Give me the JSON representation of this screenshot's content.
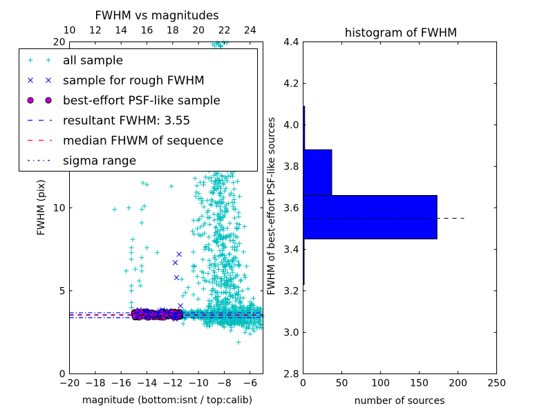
{
  "chart_data": [
    {
      "type": "scatter",
      "title": "FWHM vs magnitudes",
      "xlabel": "magnitude (bottom:isnt / top:calib)",
      "ylabel": "FWHM (pix)",
      "xlim": [
        -20,
        -5
      ],
      "ylim": [
        0,
        20
      ],
      "top_xlim": [
        10,
        25
      ],
      "xticks": [
        "−20",
        "−18",
        "−16",
        "−14",
        "−12",
        "−10",
        "−8",
        "−6"
      ],
      "xtick_values": [
        -20,
        -18,
        -16,
        -14,
        -12,
        -10,
        -8,
        -6
      ],
      "top_xticks": [
        "10",
        "12",
        "14",
        "16",
        "18",
        "20",
        "22",
        "24"
      ],
      "top_xtick_values": [
        10,
        12,
        14,
        16,
        18,
        20,
        22,
        24
      ],
      "yticks": [
        "0",
        "5",
        "10",
        "20"
      ],
      "ytick_values": [
        0,
        5,
        10,
        20
      ],
      "grid": false,
      "legend_position": "top-left",
      "legend": [
        {
          "label": "all sample",
          "marker": "plus",
          "color": "#00bfbf"
        },
        {
          "label": "sample for rough FWHM",
          "marker": "x",
          "color": "#0000ff"
        },
        {
          "label": "best-effort PSF-like sample",
          "marker": "circle",
          "color": "#bf00bf"
        },
        {
          "label": "resultant FWHM: 3.55",
          "marker": "dashed",
          "color": "#0000ff"
        },
        {
          "label": "median FHWM of sequence",
          "marker": "dashed",
          "color": "#ff0000"
        },
        {
          "label": "sigma range",
          "marker": "dashdot",
          "color": "#0000ff"
        }
      ],
      "series": [
        {
          "name": "all sample",
          "color": "#00bfbf",
          "description": "~1500 points; dense vertical plume at magnitude -9 to -6 spanning FWHM 2-20; stellar locus at FWHM ~3.5 across -15 to -5; sparse outliers at -16 to -12 with FWHM 4-11"
        },
        {
          "name": "sample for rough FWHM",
          "color": "#0000ff",
          "points": [
            [
              -11.8,
              6.7
            ],
            [
              -11.5,
              7.2
            ],
            [
              -11.7,
              5.8
            ],
            [
              -11.4,
              4.1
            ],
            [
              -14.6,
              3.85
            ],
            [
              -13.0,
              3.8
            ],
            [
              -12.8,
              3.85
            ],
            [
              -11.8,
              3.3
            ]
          ]
        },
        {
          "name": "best-effort PSF-like sample",
          "color": "#bf00bf",
          "x_range": [
            -15.0,
            -11.4
          ],
          "y_range": [
            3.4,
            3.75
          ]
        }
      ],
      "lines": [
        {
          "name": "resultant FWHM",
          "value": 3.55,
          "style": "dashed",
          "color": "#0000ff"
        },
        {
          "name": "median FHWM of sequence",
          "value": 3.55,
          "style": "dashed",
          "color": "#ff0000"
        },
        {
          "name": "sigma range upper",
          "value": 3.7,
          "style": "dashdot",
          "color": "#0000ff"
        },
        {
          "name": "sigma range lower",
          "value": 3.4,
          "style": "dashdot",
          "color": "#0000ff"
        }
      ]
    },
    {
      "type": "bar",
      "orientation": "horizontal",
      "title": "histogram of FWHM",
      "xlabel": "number of sources",
      "ylabel": "FWHM of best-effort PSF-like sources",
      "xlim": [
        0,
        250
      ],
      "ylim": [
        2.8,
        4.4
      ],
      "xticks": [
        "0",
        "50",
        "100",
        "150",
        "200",
        "250"
      ],
      "xtick_values": [
        0,
        50,
        100,
        150,
        200,
        250
      ],
      "yticks": [
        "2.8",
        "3.0",
        "3.2",
        "3.4",
        "3.6",
        "3.8",
        "4.0",
        "4.2",
        "4.4"
      ],
      "ytick_values": [
        2.8,
        3.0,
        3.2,
        3.4,
        3.6,
        3.8,
        4.0,
        4.2,
        4.4
      ],
      "grid": false,
      "bar_color": "#0000ff",
      "bins": [
        {
          "low": 3.23,
          "high": 3.45,
          "count": 1
        },
        {
          "low": 3.45,
          "high": 3.66,
          "count": 173
        },
        {
          "low": 3.66,
          "high": 3.88,
          "count": 37
        },
        {
          "low": 3.88,
          "high": 4.09,
          "count": 2
        }
      ],
      "reference_line": {
        "value": 3.55,
        "extent": 208,
        "style": "dashed",
        "color": "#000000"
      }
    }
  ]
}
